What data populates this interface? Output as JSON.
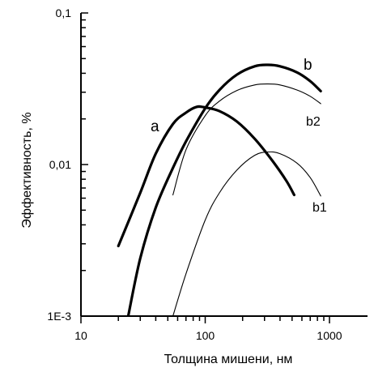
{
  "chart_data": {
    "type": "line",
    "title": "",
    "xlabel": "Толщина мишени, нм",
    "ylabel": "Эффективность, %",
    "x_scale": "log",
    "y_scale": "log",
    "xlim": [
      10,
      2000
    ],
    "ylim": [
      0.001,
      0.1
    ],
    "x_ticks": [
      {
        "value": 10,
        "label": "10"
      },
      {
        "value": 100,
        "label": "100"
      },
      {
        "value": 1000,
        "label": "1000"
      }
    ],
    "y_ticks": [
      {
        "value": 0.001,
        "label": "1E-3"
      },
      {
        "value": 0.01,
        "label": "0,01"
      },
      {
        "value": 0.1,
        "label": "0,1"
      }
    ],
    "grid": false,
    "series": [
      {
        "name": "a",
        "style": "thick",
        "x": [
          20,
          30,
          40,
          55,
          70,
          85,
          100,
          130,
          180,
          250,
          350,
          450,
          520
        ],
        "y": [
          0.0029,
          0.0065,
          0.0118,
          0.0185,
          0.022,
          0.024,
          0.0238,
          0.0225,
          0.0192,
          0.0148,
          0.0105,
          0.0078,
          0.0063
        ]
      },
      {
        "name": "b",
        "style": "thick",
        "x": [
          24,
          30,
          40,
          55,
          70,
          100,
          130,
          180,
          250,
          320,
          400,
          550,
          700,
          850
        ],
        "y": [
          0.001,
          0.0024,
          0.0052,
          0.0095,
          0.0142,
          0.0235,
          0.031,
          0.0392,
          0.0445,
          0.0455,
          0.0445,
          0.0405,
          0.0355,
          0.0305
        ]
      },
      {
        "name": "b2",
        "style": "thin",
        "x": [
          55,
          70,
          100,
          130,
          180,
          250,
          320,
          400,
          550,
          700,
          850
        ],
        "y": [
          0.0063,
          0.0125,
          0.021,
          0.0262,
          0.0308,
          0.0335,
          0.034,
          0.0335,
          0.031,
          0.0282,
          0.0252
        ]
      },
      {
        "name": "b1",
        "style": "thin",
        "x": [
          55,
          70,
          100,
          130,
          180,
          250,
          320,
          400,
          550,
          700,
          850
        ],
        "y": [
          0.001,
          0.0019,
          0.0043,
          0.0065,
          0.0092,
          0.0115,
          0.0121,
          0.0118,
          0.0102,
          0.0082,
          0.0062
        ]
      }
    ],
    "annotations": [
      {
        "text": "a",
        "series": "a"
      },
      {
        "text": "b",
        "series": "b"
      },
      {
        "text": "b2",
        "series": "b2"
      },
      {
        "text": "b1",
        "series": "b1"
      }
    ]
  }
}
